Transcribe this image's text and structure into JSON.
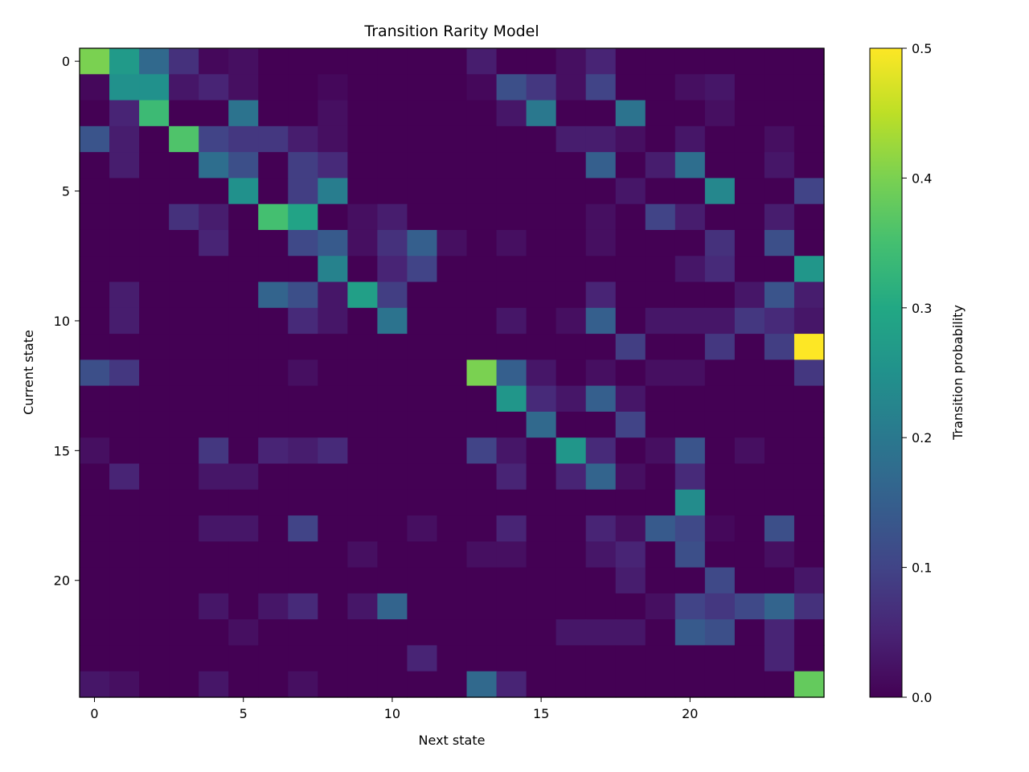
{
  "chart_data": {
    "type": "heatmap",
    "title": "Transition Rarity Model",
    "xlabel": "Next state",
    "ylabel": "Current state",
    "x_ticks": [
      0,
      5,
      10,
      15,
      20
    ],
    "y_ticks": [
      0,
      5,
      10,
      15,
      20
    ],
    "n_states": 25,
    "colormap": "viridis",
    "colorbar": {
      "label": "Transition probability",
      "min": 0.0,
      "max": 0.5,
      "ticks": [
        "0.0",
        "0.1",
        "0.2",
        "0.3",
        "0.4",
        "0.5"
      ]
    },
    "matrix": [
      [
        0.4,
        0.27,
        0.17,
        0.07,
        0.01,
        0.02,
        0,
        0,
        0,
        0,
        0,
        0,
        0,
        0.04,
        0,
        0,
        0.02,
        0.05,
        0,
        0,
        0,
        0,
        0,
        0,
        0
      ],
      [
        0.01,
        0.25,
        0.25,
        0.03,
        0.05,
        0.02,
        0,
        0,
        0.01,
        0,
        0,
        0,
        0,
        0.01,
        0.12,
        0.08,
        0.02,
        0.1,
        0,
        0,
        0.02,
        0.03,
        0,
        0,
        0
      ],
      [
        0,
        0.05,
        0.34,
        0,
        0,
        0.19,
        0,
        0,
        0.02,
        0,
        0,
        0,
        0,
        0,
        0.03,
        0.2,
        0,
        0,
        0.19,
        0,
        0,
        0.02,
        0,
        0,
        0
      ],
      [
        0.13,
        0.04,
        0,
        0.36,
        0.1,
        0.08,
        0.08,
        0.04,
        0.02,
        0,
        0,
        0,
        0,
        0,
        0,
        0,
        0.04,
        0.04,
        0.02,
        0,
        0.03,
        0,
        0,
        0.02,
        0
      ],
      [
        0,
        0.04,
        0,
        0,
        0.18,
        0.12,
        0,
        0.09,
        0.06,
        0,
        0,
        0,
        0,
        0,
        0,
        0,
        0,
        0.15,
        0,
        0.04,
        0.18,
        0,
        0,
        0.03,
        0
      ],
      [
        0,
        0,
        0,
        0,
        0,
        0.25,
        0,
        0.09,
        0.21,
        0,
        0,
        0,
        0,
        0,
        0,
        0,
        0,
        0,
        0.03,
        0,
        0,
        0.23,
        0,
        0,
        0.1
      ],
      [
        0,
        0,
        0,
        0.07,
        0.04,
        0,
        0.35,
        0.29,
        0,
        0.02,
        0.04,
        0,
        0,
        0,
        0,
        0,
        0,
        0.02,
        0,
        0.1,
        0.04,
        0,
        0,
        0.04,
        0
      ],
      [
        0,
        0,
        0,
        0,
        0.05,
        0,
        0,
        0.11,
        0.14,
        0.02,
        0.07,
        0.15,
        0.02,
        0,
        0.02,
        0,
        0,
        0.02,
        0,
        0,
        0,
        0.07,
        0,
        0.12,
        0
      ],
      [
        0,
        0,
        0,
        0,
        0,
        0,
        0,
        0,
        0.22,
        0,
        0.05,
        0.1,
        0,
        0,
        0,
        0,
        0,
        0,
        0,
        0,
        0.03,
        0.06,
        0,
        0,
        0.26
      ],
      [
        0,
        0.04,
        0,
        0,
        0,
        0,
        0.16,
        0.12,
        0.03,
        0.28,
        0.09,
        0,
        0,
        0,
        0,
        0,
        0,
        0.05,
        0,
        0,
        0,
        0,
        0.03,
        0.13,
        0.04
      ],
      [
        0,
        0.04,
        0,
        0,
        0,
        0,
        0,
        0.06,
        0.03,
        0,
        0.19,
        0,
        0,
        0,
        0.03,
        0,
        0.02,
        0.15,
        0,
        0.03,
        0.03,
        0.03,
        0.08,
        0.06,
        0.03
      ],
      [
        0,
        0,
        0,
        0,
        0,
        0,
        0,
        0,
        0,
        0,
        0,
        0,
        0,
        0,
        0,
        0,
        0,
        0,
        0.09,
        0,
        0,
        0.08,
        0,
        0.09,
        0.5
      ],
      [
        0.12,
        0.08,
        0,
        0,
        0,
        0,
        0,
        0.02,
        0,
        0,
        0,
        0,
        0,
        0.4,
        0.15,
        0.03,
        0,
        0.02,
        0,
        0.02,
        0.02,
        0,
        0,
        0,
        0.08
      ],
      [
        0,
        0,
        0,
        0,
        0,
        0,
        0,
        0,
        0,
        0,
        0,
        0,
        0,
        0,
        0.26,
        0.06,
        0.03,
        0.15,
        0.03,
        0,
        0,
        0,
        0,
        0,
        0
      ],
      [
        0,
        0,
        0,
        0,
        0,
        0,
        0,
        0,
        0,
        0,
        0,
        0,
        0,
        0,
        0,
        0.17,
        0,
        0,
        0.1,
        0,
        0,
        0,
        0,
        0,
        0
      ],
      [
        0.02,
        0,
        0,
        0,
        0.08,
        0,
        0.05,
        0.04,
        0.06,
        0,
        0,
        0,
        0,
        0.1,
        0.03,
        0,
        0.26,
        0.06,
        0,
        0.02,
        0.13,
        0,
        0.02,
        0,
        0
      ],
      [
        0,
        0.05,
        0,
        0,
        0.03,
        0.03,
        0,
        0,
        0,
        0,
        0,
        0,
        0,
        0,
        0.05,
        0,
        0.05,
        0.16,
        0.02,
        0,
        0.06,
        0,
        0,
        0,
        0
      ],
      [
        0,
        0,
        0,
        0,
        0,
        0,
        0,
        0,
        0,
        0,
        0,
        0,
        0,
        0,
        0,
        0,
        0,
        0,
        0,
        0,
        0.24,
        0,
        0,
        0,
        0
      ],
      [
        0,
        0,
        0,
        0,
        0.03,
        0.03,
        0,
        0.1,
        0,
        0,
        0,
        0.02,
        0,
        0,
        0.05,
        0,
        0,
        0.05,
        0.02,
        0.14,
        0.11,
        0.01,
        0,
        0.12,
        0
      ],
      [
        0,
        0,
        0,
        0,
        0,
        0,
        0,
        0,
        0,
        0.02,
        0,
        0,
        0,
        0.02,
        0.02,
        0,
        0,
        0.03,
        0.05,
        0,
        0.12,
        0,
        0,
        0.02,
        0
      ],
      [
        0,
        0,
        0,
        0,
        0,
        0,
        0,
        0,
        0,
        0,
        0,
        0,
        0,
        0,
        0,
        0,
        0,
        0,
        0.04,
        0,
        0,
        0.11,
        0,
        0,
        0.03
      ],
      [
        0,
        0,
        0,
        0,
        0.03,
        0,
        0.03,
        0.06,
        0,
        0.03,
        0.16,
        0,
        0,
        0,
        0,
        0,
        0,
        0,
        0,
        0.02,
        0.1,
        0.08,
        0.11,
        0.16,
        0.07
      ],
      [
        0,
        0,
        0,
        0,
        0,
        0.02,
        0,
        0,
        0,
        0,
        0,
        0,
        0,
        0,
        0,
        0,
        0.03,
        0.03,
        0.03,
        0,
        0.14,
        0.12,
        0,
        0.05,
        0
      ],
      [
        0,
        0,
        0,
        0,
        0,
        0,
        0,
        0,
        0,
        0,
        0,
        0.05,
        0,
        0,
        0,
        0,
        0,
        0,
        0,
        0,
        0,
        0,
        0,
        0.05,
        0
      ],
      [
        0.03,
        0.02,
        0,
        0,
        0.03,
        0,
        0,
        0.02,
        0,
        0,
        0,
        0,
        0,
        0.17,
        0.05,
        0,
        0,
        0,
        0,
        0,
        0,
        0,
        0,
        0,
        0.38
      ]
    ]
  }
}
